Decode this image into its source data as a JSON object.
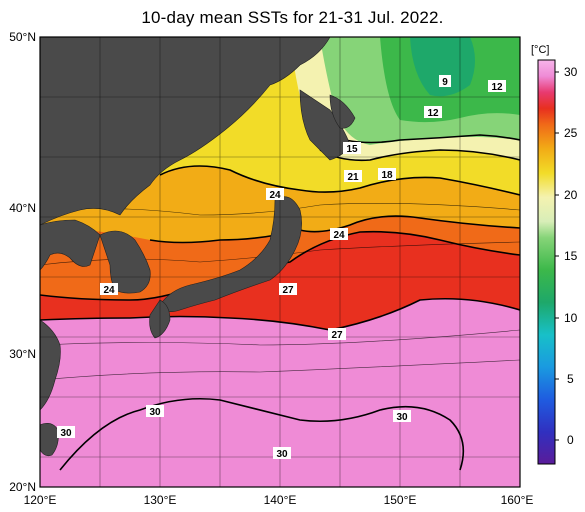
{
  "title": "10-day mean SSTs for 21-31 Jul. 2022.",
  "colorbar": {
    "unit": "[°C]",
    "ticks": [
      "30",
      "25",
      "20",
      "15",
      "10",
      "5",
      "0"
    ]
  },
  "axes": {
    "lat_labels": [
      "50°N",
      "40°N",
      "30°N",
      "20°N"
    ],
    "lon_labels": [
      "120°E",
      "130°E",
      "140°E",
      "150°E",
      "160°E"
    ]
  },
  "contour_labels": [
    "9",
    "12",
    "12",
    "15",
    "21",
    "18",
    "24",
    "24",
    "24",
    "27",
    "27",
    "30",
    "30",
    "30",
    "30"
  ],
  "colors": {
    "land": "#4a4a4a",
    "sst_30": "#ef8bd6",
    "sst_27": "#e8301f",
    "sst_24": "#f06a18",
    "sst_21": "#f2ac16",
    "sst_18": "#f2dc28",
    "sst_15": "#f4f2b0",
    "sst_12": "#55c850",
    "sst_9": "#2a9a5a"
  }
}
